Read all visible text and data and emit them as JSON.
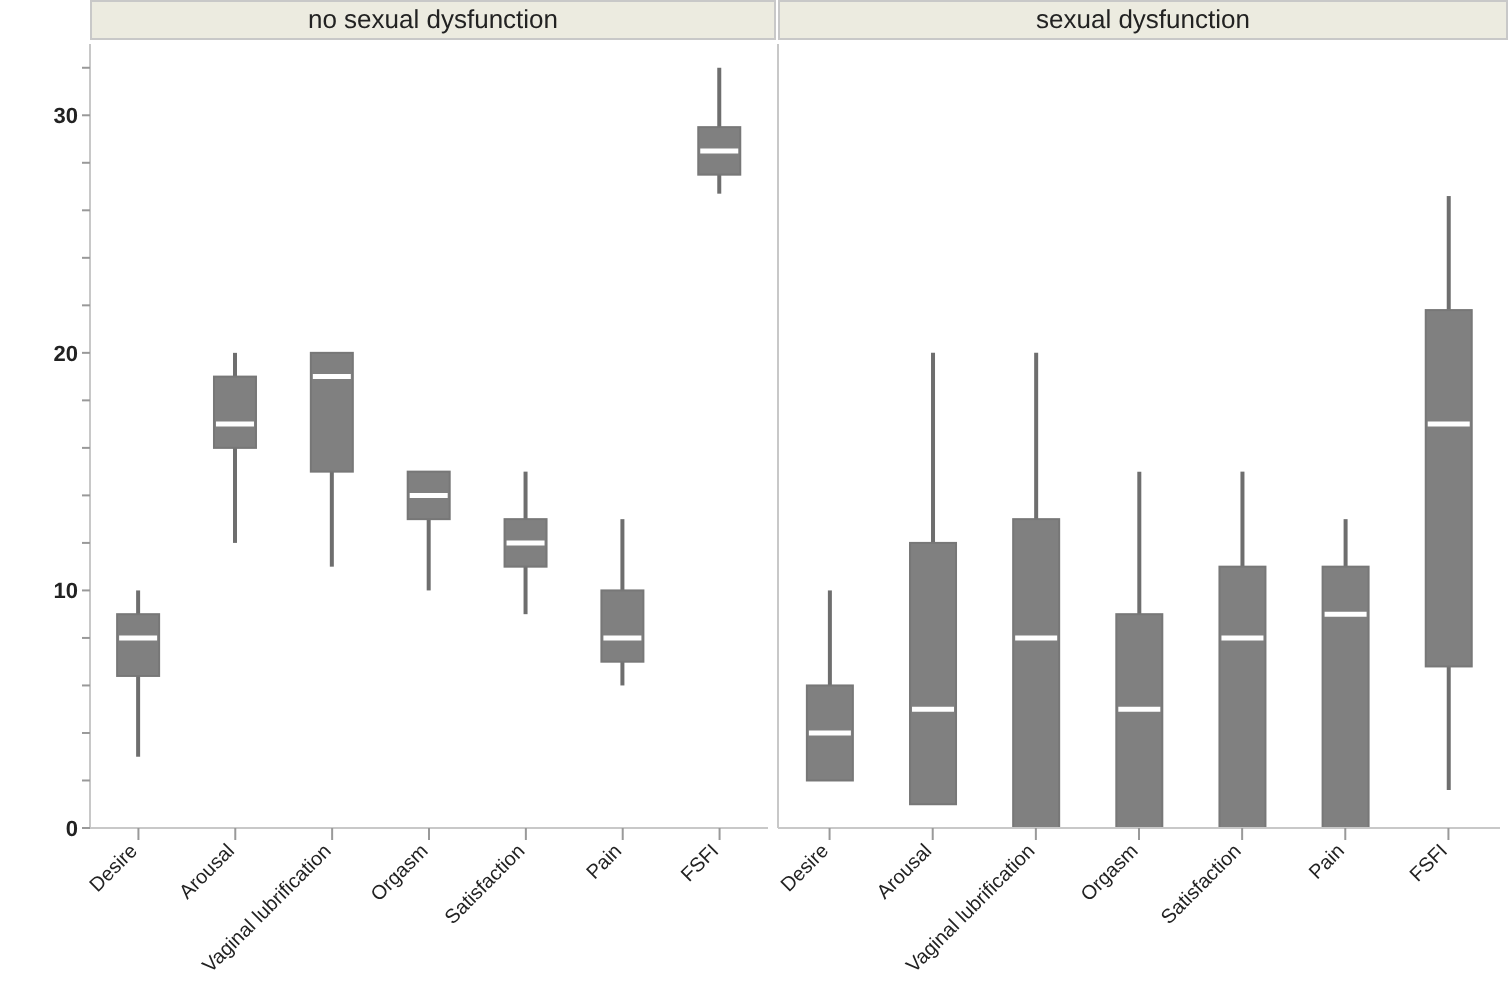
{
  "chart_data": [
    {
      "type": "box",
      "title": "no sexual dysfunction",
      "categories": [
        "Desire",
        "Arousal",
        "Vaginal lubrification",
        "Orgasm",
        "Satisfaction",
        "Pain",
        "FSFI"
      ],
      "color": "#808080",
      "ylim": [
        0,
        33
      ],
      "yticks": [
        0,
        {
          "value": 2,
          "label": null
        },
        {
          "value": 4,
          "label": null
        },
        {
          "value": 6,
          "label": null
        },
        {
          "value": 8,
          "label": null
        },
        10,
        {
          "value": 12,
          "label": null
        },
        {
          "value": 14,
          "label": null
        },
        {
          "value": 16,
          "label": null
        },
        {
          "value": 18,
          "label": null
        },
        20,
        {
          "value": 22,
          "label": null
        },
        {
          "value": 24,
          "label": null
        },
        {
          "value": 26,
          "label": null
        },
        {
          "value": 28,
          "label": null
        },
        30,
        {
          "value": 32,
          "label": null
        }
      ],
      "boxes": [
        {
          "low": 3,
          "q1": 6.4,
          "median": 8,
          "q3": 9,
          "high": 10
        },
        {
          "low": 12,
          "q1": 16,
          "median": 17,
          "q3": 19,
          "high": 20
        },
        {
          "low": 11,
          "q1": 15,
          "median": 19,
          "q3": 20,
          "high": 20
        },
        {
          "low": 10,
          "q1": 13,
          "median": 14,
          "q3": 15,
          "high": 15
        },
        {
          "low": 9,
          "q1": 11,
          "median": 12,
          "q3": 13,
          "high": 15
        },
        {
          "low": 6,
          "q1": 7,
          "median": 8,
          "q3": 10,
          "high": 13
        },
        {
          "low": 26.7,
          "q1": 27.5,
          "median": 28.5,
          "q3": 29.5,
          "high": 32
        }
      ]
    },
    {
      "type": "box",
      "title": "sexual dysfunction",
      "categories": [
        "Desire",
        "Arousal",
        "Vaginal lubrification",
        "Orgasm",
        "Satisfaction",
        "Pain",
        "FSFI"
      ],
      "color": "#808080",
      "ylim": [
        0,
        33
      ],
      "tick_labels": "x",
      "boxes": [
        {
          "low": 2,
          "q1": 2,
          "median": 4,
          "q3": 6,
          "high": 10
        },
        {
          "low": 1,
          "q1": 1,
          "median": 5,
          "q3": 12,
          "high": 20
        },
        {
          "low": 0,
          "q1": 0,
          "median": 8,
          "q3": 13,
          "high": 20
        },
        {
          "low": 0,
          "q1": 0,
          "median": 5,
          "q3": 9,
          "high": 15
        },
        {
          "low": 0,
          "q1": 0,
          "median": 8,
          "q3": 11,
          "high": 15
        },
        {
          "low": 0,
          "q1": 0,
          "median": 9,
          "q3": 11,
          "high": 13
        },
        {
          "low": 1.6,
          "q1": 6.8,
          "median": 17,
          "q3": 21.8,
          "high": 26.6
        }
      ]
    }
  ]
}
